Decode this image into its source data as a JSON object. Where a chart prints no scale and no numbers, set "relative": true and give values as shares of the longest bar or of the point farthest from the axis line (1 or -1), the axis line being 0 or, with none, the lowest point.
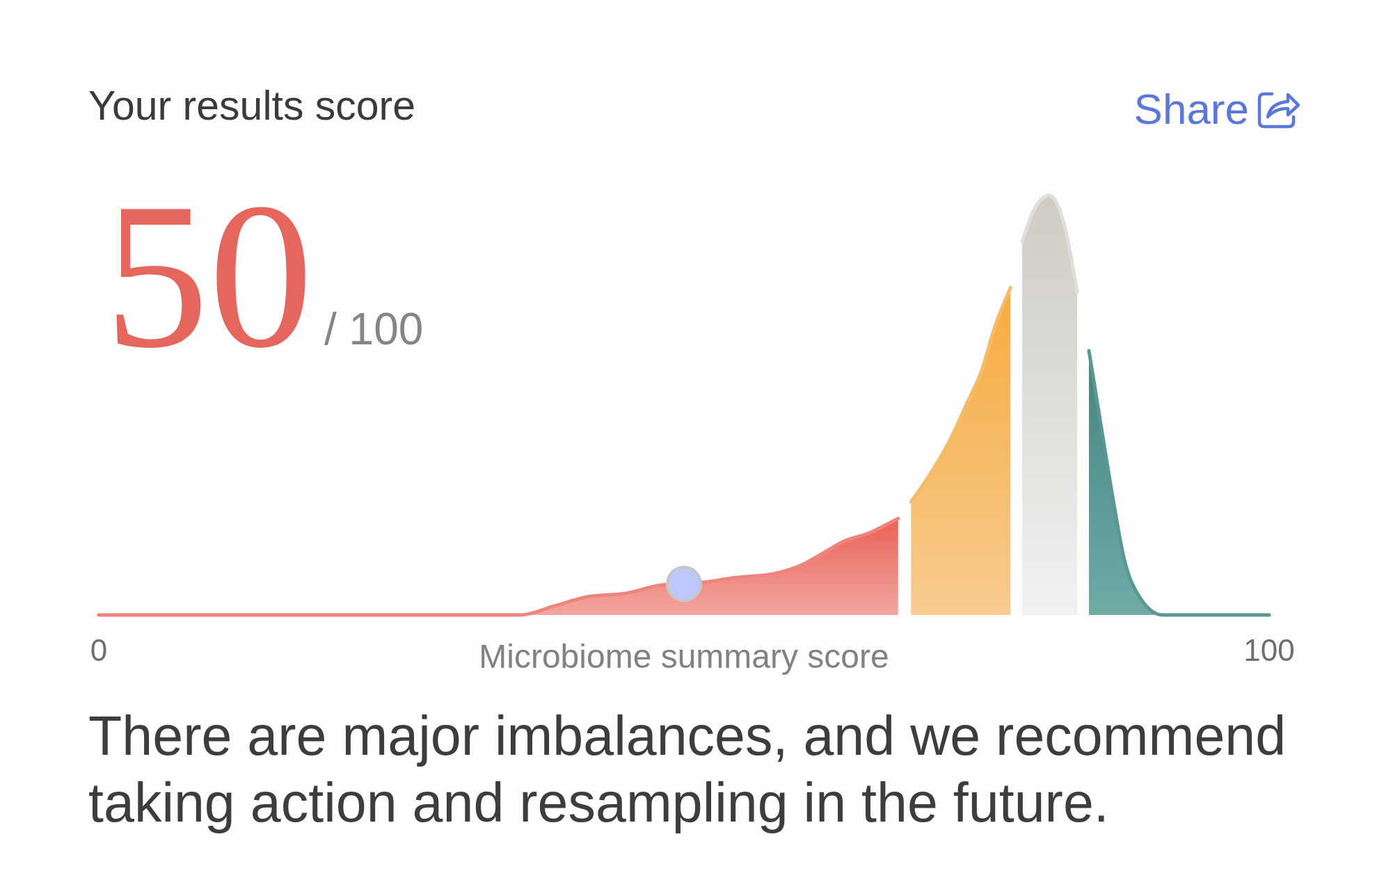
{
  "chart_data": {
    "type": "area",
    "title": "Your results score",
    "xlabel": "Microbiome summary score",
    "annotations": [
      "50",
      "/ 100",
      "Share",
      "There are major imbalances, and we recommend taking action and resampling in the future."
    ],
    "relative": true,
    "xlim": [
      0,
      100
    ],
    "xticks": [
      0,
      100
    ],
    "tick_labels": "x",
    "series": [
      {
        "color": "#ed857c",
        "x": [
          0,
          36,
          39,
          41.7,
          45.1,
          48,
          51.7,
          54.4,
          57.6,
          60.2,
          61.8,
          63.7,
          65.8,
          67.4,
          68.3
        ],
        "values": [
          0,
          0,
          0.022,
          0.043,
          0.052,
          0.071,
          0.078,
          0.089,
          0.098,
          0.121,
          0.146,
          0.176,
          0.195,
          0.217,
          0.23
        ]
      },
      {
        "color": "#f6bb68",
        "x": [
          69.4,
          70.9,
          72.6,
          74.1,
          75.4,
          76.6,
          77.9
        ],
        "values": [
          0.27,
          0.33,
          0.41,
          0.5,
          0.58,
          0.69,
          0.78
        ]
      },
      {
        "color": "#dfdedb",
        "x": [
          78.9,
          79.9,
          81.2,
          82.4,
          83.6
        ],
        "values": [
          0.89,
          0.965,
          1,
          0.94,
          0.77
        ]
      },
      {
        "color": "#5a9893",
        "x": [
          84.6,
          85.7,
          86.7,
          87.6,
          88.9,
          90.9,
          100
        ],
        "values": [
          0.63,
          0.44,
          0.27,
          0.135,
          0.044,
          0,
          0
        ]
      },
      {
        "type": "scatter",
        "color": "#bec8fc",
        "marker": "circle",
        "x": [
          50
        ],
        "values": [
          0.074
        ]
      }
    ]
  }
}
